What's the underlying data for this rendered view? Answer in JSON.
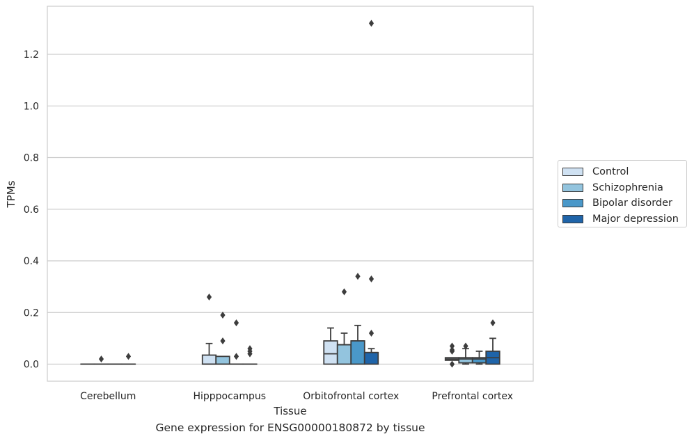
{
  "caption": "Gene expression for ENSG00000180872 by tissue",
  "chart_data": {
    "type": "box",
    "xlabel": "Tissue",
    "ylabel": "TPMs",
    "ylim": [
      -0.066,
      1.386
    ],
    "yticks": [
      "0.0",
      "0.2",
      "0.4",
      "0.6",
      "0.8",
      "1.0",
      "1.2"
    ],
    "ytick_values": [
      0.0,
      0.2,
      0.4,
      0.6,
      0.8,
      1.0,
      1.2
    ],
    "grid": true,
    "legend_placement": "right",
    "categories": [
      "Cerebellum",
      "Hipppocampus",
      "Orbitofrontal cortex",
      "Prefrontal cortex"
    ],
    "series": [
      {
        "name": "Control",
        "color": "#cfe1f2",
        "boxes": [
          {
            "q1": 0.0,
            "median": 0.0,
            "q3": 0.0,
            "whisker_low": 0.0,
            "whisker_high": 0.0,
            "outliers": []
          },
          {
            "q1": 0.0,
            "median": 0.0,
            "q3": 0.035,
            "whisker_low": 0.0,
            "whisker_high": 0.08,
            "outliers": [
              0.26
            ]
          },
          {
            "q1": 0.0,
            "median": 0.04,
            "q3": 0.09,
            "whisker_low": 0.0,
            "whisker_high": 0.14,
            "outliers": []
          },
          {
            "q1": 0.015,
            "median": 0.02,
            "q3": 0.025,
            "whisker_low": 0.015,
            "whisker_high": 0.025,
            "outliers": [
              0.07,
              0.055,
              0.05,
              0.0
            ]
          }
        ]
      },
      {
        "name": "Schizophrenia",
        "color": "#93c4de",
        "boxes": [
          {
            "q1": 0.0,
            "median": 0.0,
            "q3": 0.0,
            "whisker_low": 0.0,
            "whisker_high": 0.0,
            "outliers": [
              0.02
            ]
          },
          {
            "q1": 0.0,
            "median": 0.0,
            "q3": 0.03,
            "whisker_low": 0.0,
            "whisker_high": 0.03,
            "outliers": [
              0.19,
              0.09
            ]
          },
          {
            "q1": 0.0,
            "median": 0.075,
            "q3": 0.075,
            "whisker_low": 0.0,
            "whisker_high": 0.12,
            "outliers": [
              0.28
            ]
          },
          {
            "q1": 0.005,
            "median": 0.02,
            "q3": 0.025,
            "whisker_low": 0.0,
            "whisker_high": 0.06,
            "outliers": [
              0.07
            ]
          }
        ]
      },
      {
        "name": "Bipolar disorder",
        "color": "#4a98c9",
        "boxes": [
          {
            "q1": 0.0,
            "median": 0.0,
            "q3": 0.0,
            "whisker_low": 0.0,
            "whisker_high": 0.0,
            "outliers": []
          },
          {
            "q1": 0.0,
            "median": 0.0,
            "q3": 0.0,
            "whisker_low": 0.0,
            "whisker_high": 0.0,
            "outliers": [
              0.16,
              0.03
            ]
          },
          {
            "q1": 0.0,
            "median": 0.09,
            "q3": 0.09,
            "whisker_low": 0.0,
            "whisker_high": 0.15,
            "outliers": [
              0.34
            ]
          },
          {
            "q1": 0.005,
            "median": 0.02,
            "q3": 0.025,
            "whisker_low": 0.0,
            "whisker_high": 0.05,
            "outliers": []
          }
        ]
      },
      {
        "name": "Major depression",
        "color": "#1f64a9",
        "boxes": [
          {
            "q1": 0.0,
            "median": 0.0,
            "q3": 0.0,
            "whisker_low": 0.0,
            "whisker_high": 0.0,
            "outliers": [
              0.03
            ]
          },
          {
            "q1": 0.0,
            "median": 0.0,
            "q3": 0.0,
            "whisker_low": 0.0,
            "whisker_high": 0.0,
            "outliers": [
              0.06,
              0.05,
              0.04
            ]
          },
          {
            "q1": 0.0,
            "median": 0.045,
            "q3": 0.045,
            "whisker_low": 0.0,
            "whisker_high": 0.06,
            "outliers": [
              1.32,
              0.33,
              0.12
            ]
          },
          {
            "q1": 0.0,
            "median": 0.025,
            "q3": 0.05,
            "whisker_low": 0.0,
            "whisker_high": 0.1,
            "outliers": [
              0.16
            ]
          }
        ]
      }
    ]
  }
}
